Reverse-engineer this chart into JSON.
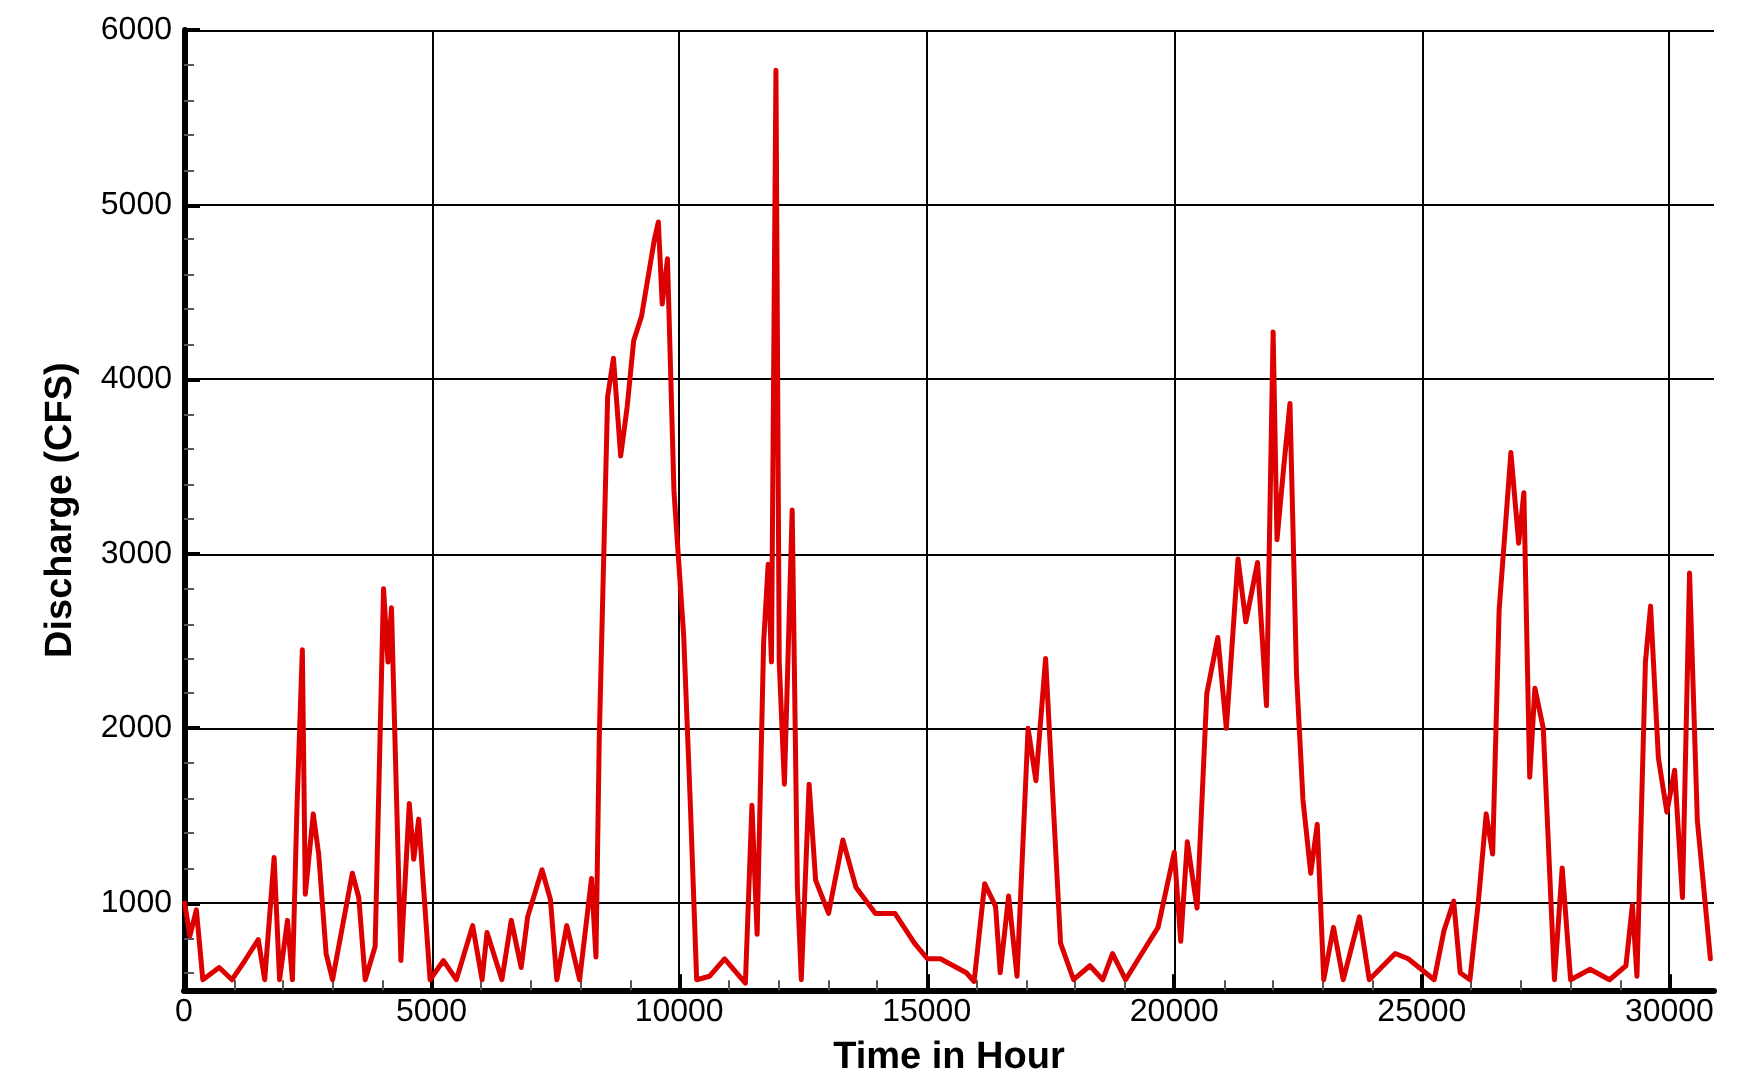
{
  "chart_data": {
    "type": "line",
    "xlabel": "Time in Hour",
    "ylabel": "Discharge (CFS)",
    "xlim": [
      0,
      30900
    ],
    "ylim": [
      500,
      6000
    ],
    "xticks": [
      0,
      5000,
      10000,
      15000,
      20000,
      25000,
      30000
    ],
    "yticks": [
      1000,
      2000,
      3000,
      4000,
      5000,
      6000
    ],
    "grid": true,
    "marker": "none",
    "line_style": "solid",
    "series": [
      {
        "color": "#dd0000",
        "x": [
          13,
          118,
          250,
          380,
          710,
          970,
          1230,
          1500,
          1630,
          1820,
          1930,
          2090,
          2190,
          2280,
          2390,
          2450,
          2610,
          2720,
          2870,
          3000,
          3400,
          3530,
          3660,
          3860,
          4030,
          4120,
          4190,
          4380,
          4550,
          4640,
          4740,
          4970,
          5240,
          5500,
          5830,
          6020,
          6120,
          6420,
          6610,
          6810,
          6940,
          7230,
          7400,
          7530,
          7730,
          7990,
          8230,
          8320,
          8386,
          8556,
          8674,
          8819,
          8950,
          9082,
          9240,
          9500,
          9580,
          9658,
          9764,
          9895,
          10092,
          10224,
          10354,
          10616,
          10918,
          11338,
          11470,
          11575,
          11706,
          11798,
          11864,
          11955,
          12021,
          12126,
          12283,
          12388,
          12467,
          12625,
          12756,
          13018,
          13307,
          13570,
          13965,
          14358,
          14752,
          15012,
          15276,
          15800,
          15958,
          16170,
          16391,
          16484,
          16654,
          16824,
          17047,
          17205,
          17401,
          17703,
          17966,
          18295,
          18556,
          18753,
          19016,
          19343,
          19672,
          20000,
          20130,
          20263,
          20460,
          20657,
          20879,
          21051,
          21287,
          21445,
          21681,
          21862,
          21996,
          22074,
          22205,
          22336,
          22468,
          22599,
          22756,
          22887,
          23018,
          23215,
          23412,
          23740,
          23937,
          24461,
          24724,
          25249,
          25446,
          25643,
          25774,
          25971,
          26142,
          26299,
          26430,
          26561,
          26693,
          26798,
          26955,
          27060,
          27178,
          27283,
          27452,
          27677,
          27834,
          28004,
          28398,
          28790,
          29121,
          29252,
          29344,
          29515,
          29619,
          29777,
          29948,
          30105,
          30263,
          30406,
          30564,
          30695,
          30827
        ],
        "values": [
          1000,
          810,
          960,
          560,
          630,
          560,
          670,
          790,
          560,
          1260,
          560,
          900,
          560,
          1530,
          2450,
          1050,
          1510,
          1280,
          710,
          560,
          1170,
          1030,
          560,
          750,
          2800,
          2380,
          2690,
          670,
          1570,
          1250,
          1480,
          560,
          670,
          560,
          870,
          560,
          830,
          560,
          900,
          630,
          920,
          1190,
          1020,
          560,
          870,
          560,
          1140,
          690,
          1930,
          3900,
          4120,
          3560,
          3840,
          4220,
          4360,
          4800,
          4900,
          4430,
          4690,
          3360,
          2530,
          1580,
          560,
          580,
          680,
          540,
          1560,
          820,
          2490,
          2940,
          2380,
          5770,
          2380,
          1680,
          3250,
          1090,
          560,
          1680,
          1130,
          940,
          1360,
          1090,
          940,
          940,
          770,
          680,
          680,
          600,
          550,
          1110,
          980,
          600,
          1040,
          580,
          2000,
          1700,
          2400,
          770,
          560,
          640,
          560,
          710,
          560,
          710,
          860,
          1290,
          780,
          1350,
          970,
          2200,
          2520,
          2000,
          2970,
          2610,
          2950,
          2130,
          4270,
          3080,
          3480,
          3860,
          2310,
          1590,
          1170,
          1450,
          560,
          860,
          560,
          920,
          560,
          710,
          680,
          560,
          840,
          1010,
          600,
          560,
          1010,
          1510,
          1280,
          2680,
          3180,
          3580,
          3060,
          3350,
          1720,
          2230,
          2000,
          560,
          1200,
          560,
          620,
          560,
          640,
          990,
          580,
          2380,
          2700,
          1830,
          1520,
          1760,
          1030,
          2890,
          1470,
          1080,
          680
        ]
      }
    ]
  }
}
